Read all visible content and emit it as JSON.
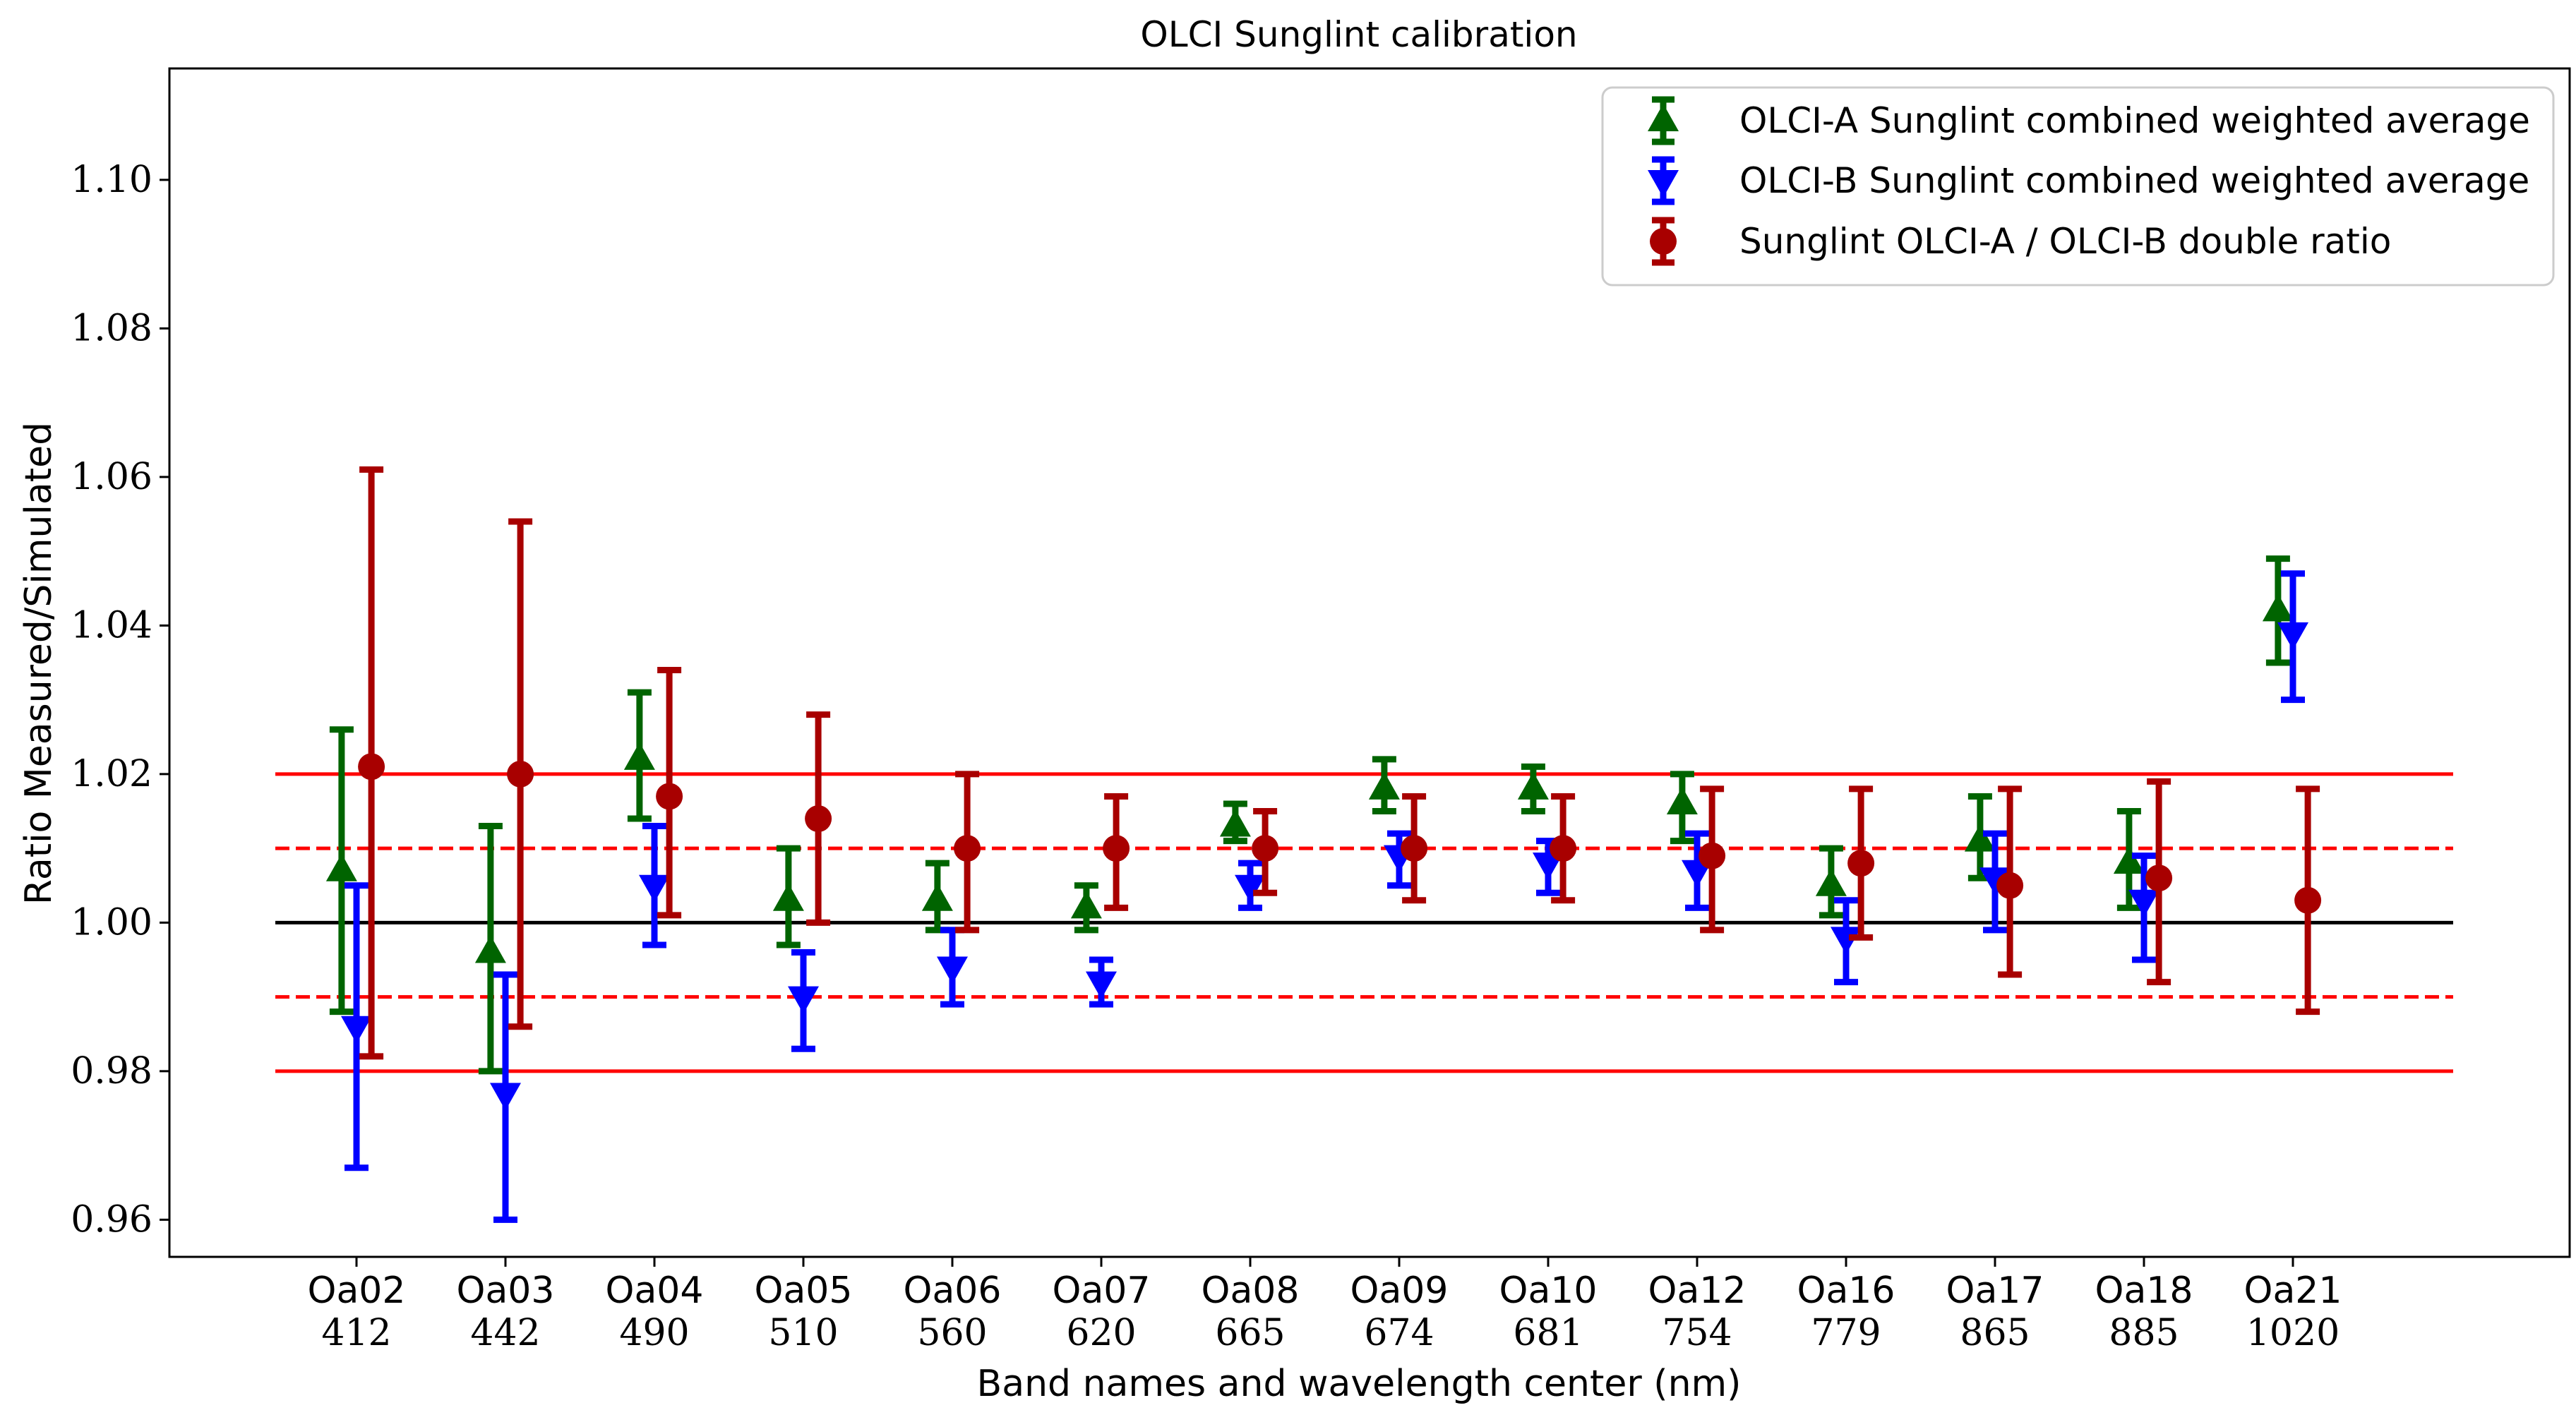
{
  "chart_data": {
    "type": "errorbar",
    "title": "OLCI Sunglint calibration",
    "xlabel": "Band names and wavelength center (nm)",
    "ylabel": "Ratio Measured/Simulated",
    "ylim": [
      0.955,
      1.115
    ],
    "yticks": [
      0.96,
      0.98,
      1.0,
      1.02,
      1.04,
      1.06,
      1.08,
      1.1
    ],
    "ytick_labels": [
      "0.96",
      "0.98",
      "1.00",
      "1.02",
      "1.04",
      "1.06",
      "1.08",
      "1.10"
    ],
    "bands": [
      "Oa02",
      "Oa03",
      "Oa04",
      "Oa05",
      "Oa06",
      "Oa07",
      "Oa08",
      "Oa09",
      "Oa10",
      "Oa12",
      "Oa16",
      "Oa17",
      "Oa18",
      "Oa21"
    ],
    "wavelengths": [
      "412",
      "442",
      "490",
      "510",
      "560",
      "620",
      "665",
      "674",
      "681",
      "754",
      "779",
      "865",
      "885",
      "1020"
    ],
    "reference_lines": [
      {
        "y": 1.0,
        "color": "#000000",
        "style": "solid"
      },
      {
        "y": 1.01,
        "color": "#ff0000",
        "style": "dashed"
      },
      {
        "y": 0.99,
        "color": "#ff0000",
        "style": "dashed"
      },
      {
        "y": 1.02,
        "color": "#ff0000",
        "style": "solid"
      },
      {
        "y": 0.98,
        "color": "#ff0000",
        "style": "solid"
      }
    ],
    "series": [
      {
        "name": "OLCI-A Sunglint combined weighted average",
        "color": "#006400",
        "marker": "triangle-up",
        "offset": -0.1,
        "values": [
          1.007,
          0.996,
          1.022,
          1.003,
          1.003,
          1.002,
          1.013,
          1.018,
          1.018,
          1.016,
          1.005,
          1.011,
          1.008,
          1.042
        ],
        "lower": [
          0.988,
          0.98,
          1.014,
          0.997,
          0.999,
          0.999,
          1.011,
          1.015,
          1.015,
          1.011,
          1.001,
          1.006,
          1.002,
          1.035
        ],
        "upper": [
          1.026,
          1.013,
          1.031,
          1.01,
          1.008,
          1.005,
          1.016,
          1.022,
          1.021,
          1.02,
          1.01,
          1.017,
          1.015,
          1.049
        ]
      },
      {
        "name": "OLCI-B Sunglint combined weighted average",
        "color": "#0000ff",
        "marker": "triangle-down",
        "offset": 0.0,
        "values": [
          0.986,
          0.977,
          1.005,
          0.99,
          0.994,
          0.992,
          1.005,
          1.009,
          1.008,
          1.007,
          0.998,
          1.006,
          1.003,
          1.039
        ],
        "lower": [
          0.967,
          0.96,
          0.997,
          0.983,
          0.989,
          0.989,
          1.002,
          1.005,
          1.004,
          1.002,
          0.992,
          0.999,
          0.995,
          1.03
        ],
        "upper": [
          1.005,
          0.993,
          1.013,
          0.996,
          0.999,
          0.995,
          1.008,
          1.012,
          1.011,
          1.012,
          1.003,
          1.012,
          1.009,
          1.047
        ]
      },
      {
        "name": "Sunglint OLCI-A / OLCI-B double ratio",
        "color": "#a80000",
        "marker": "circle",
        "offset": 0.1,
        "values": [
          1.021,
          1.02,
          1.017,
          1.014,
          1.01,
          1.01,
          1.01,
          1.01,
          1.01,
          1.009,
          1.008,
          1.005,
          1.006,
          1.003
        ],
        "lower": [
          0.982,
          0.986,
          1.001,
          1.0,
          0.999,
          1.002,
          1.004,
          1.003,
          1.003,
          0.999,
          0.998,
          0.993,
          0.992,
          0.988
        ],
        "upper": [
          1.061,
          1.054,
          1.034,
          1.028,
          1.02,
          1.017,
          1.015,
          1.017,
          1.017,
          1.018,
          1.018,
          1.018,
          1.019,
          1.018
        ]
      }
    ],
    "legend": {
      "position": "upper right",
      "entries": [
        "OLCI-A Sunglint combined weighted average",
        "OLCI-B Sunglint combined weighted average",
        "Sunglint OLCI-A / OLCI-B double ratio"
      ]
    }
  }
}
